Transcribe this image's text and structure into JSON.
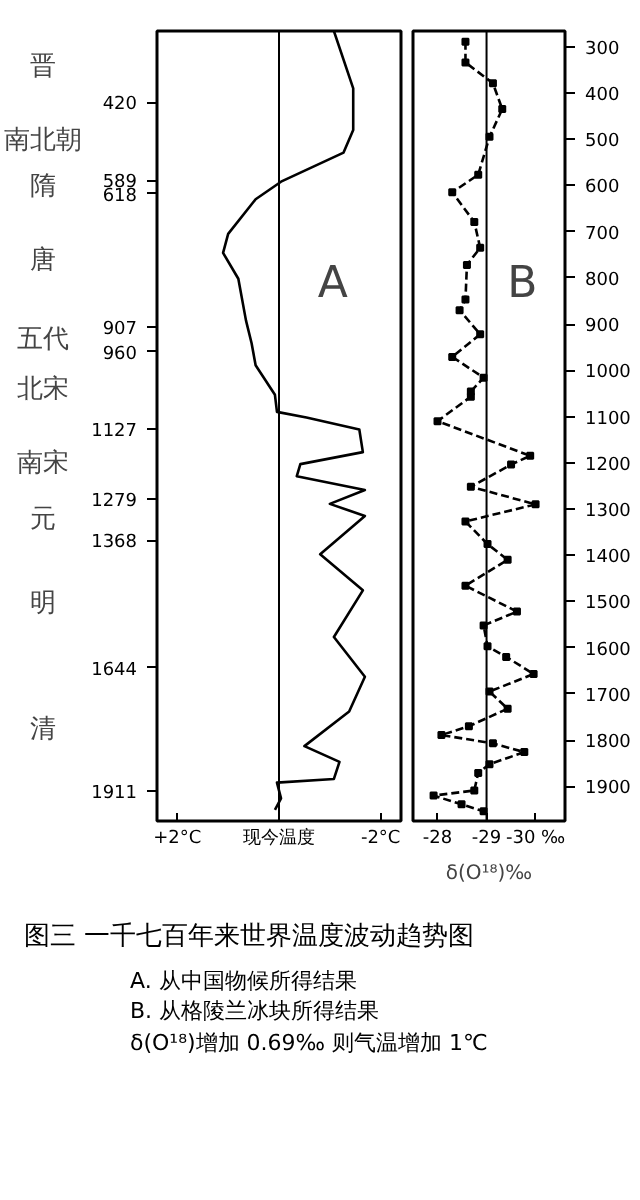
{
  "chart_data": [
    {
      "type": "line",
      "orientation": "horizontal",
      "title": "A",
      "grid": false,
      "marker": "none",
      "line_style": "solid",
      "xlim": [
        2.4,
        -2.4
      ],
      "xticks": [
        {
          "value": 2,
          "label": "+2°C"
        },
        {
          "value": 0,
          "label": "现今温度"
        },
        {
          "value": -2,
          "label": "-2°C"
        }
      ],
      "ylim": [
        1975,
        266
      ],
      "yticks": [
        420,
        589,
        618,
        907,
        960,
        1127,
        1279,
        1368,
        1644,
        1911
      ],
      "series": [
        {
          "color": "#000000",
          "x": [
            266,
            390,
            480,
            529,
            592,
            630,
            705,
            746,
            802,
            892,
            941,
            989,
            1053,
            1090,
            1102,
            1128,
            1177,
            1203,
            1229,
            1259,
            1289,
            1315,
            1398,
            1476,
            1577,
            1663,
            1738,
            1813,
            1847,
            1884,
            1892,
            1926,
            1951
          ],
          "values": [
            -1.08,
            -1.46,
            -1.46,
            -1.27,
            -0.04,
            0.46,
            1.0,
            1.1,
            0.8,
            0.65,
            0.54,
            0.46,
            0.08,
            0.04,
            -0.54,
            -1.58,
            -1.65,
            -0.42,
            -0.35,
            -1.69,
            -1.0,
            -1.69,
            -0.81,
            -1.65,
            -1.08,
            -1.69,
            -1.38,
            -0.5,
            -1.19,
            -1.08,
            0.04,
            -0.04,
            0.08
          ]
        }
      ],
      "ref_lines": [
        {
          "axis": "x",
          "value": 0,
          "color": "#000000"
        }
      ],
      "annotations": [
        "晋",
        "南北朝",
        "隋",
        "唐",
        "五代",
        "北宋",
        "南宋",
        "元",
        "明",
        "清"
      ]
    },
    {
      "type": "line",
      "orientation": "horizontal",
      "title": "B",
      "xlabel": "δ(O¹⁸)‰",
      "grid": false,
      "marker": "square",
      "line_style": "dashed",
      "xlim": [
        -27.5,
        -30.6
      ],
      "xticks": [
        -28,
        -29,
        {
          "value": -30,
          "label": "-30 ‰"
        }
      ],
      "ylim": [
        1975,
        266
      ],
      "yticks": [
        300,
        400,
        500,
        600,
        700,
        800,
        900,
        1000,
        1100,
        1200,
        1300,
        1400,
        1500,
        1600,
        1700,
        1800,
        1900
      ],
      "series": [
        {
          "color": "#000000",
          "x": [
            289,
            334,
            379,
            435,
            495,
            577,
            615,
            679,
            735,
            772,
            847,
            870,
            922,
            971,
            1016,
            1046,
            1057,
            1110,
            1185,
            1204,
            1252,
            1290,
            1327,
            1376,
            1410,
            1466,
            1522,
            1552,
            1597,
            1620,
            1657,
            1695,
            1732,
            1770,
            1789,
            1807,
            1826,
            1852,
            1871,
            1909,
            1920,
            1939,
            1954
          ],
          "values": [
            -28.57,
            -28.57,
            -29.13,
            -29.32,
            -29.06,
            -28.83,
            -28.3,
            -28.75,
            -28.87,
            -28.6,
            -28.57,
            -28.45,
            -28.87,
            -28.3,
            -28.94,
            -28.68,
            -28.68,
            -28.0,
            -29.89,
            -29.5,
            -28.68,
            -30.0,
            -28.57,
            -29.02,
            -29.43,
            -28.57,
            -29.62,
            -28.94,
            -29.02,
            -29.4,
            -29.96,
            -29.06,
            -29.43,
            -28.64,
            -28.08,
            -29.13,
            -29.77,
            -29.06,
            -28.83,
            -28.75,
            -27.92,
            -28.49,
            -28.94
          ]
        }
      ],
      "ref_lines": [
        {
          "axis": "x",
          "value": -29,
          "color": "#000000"
        }
      ]
    },
    {
      "type": "other",
      "title": "图三 一千七百年来世界温度波动趋势图",
      "annotations": [
        "A. 从中国物候所得结果",
        "B. 从格陵兰冰块所得结果",
        "δ(O¹⁸)增加 0.69‰ 则气温增加 1℃"
      ]
    }
  ]
}
